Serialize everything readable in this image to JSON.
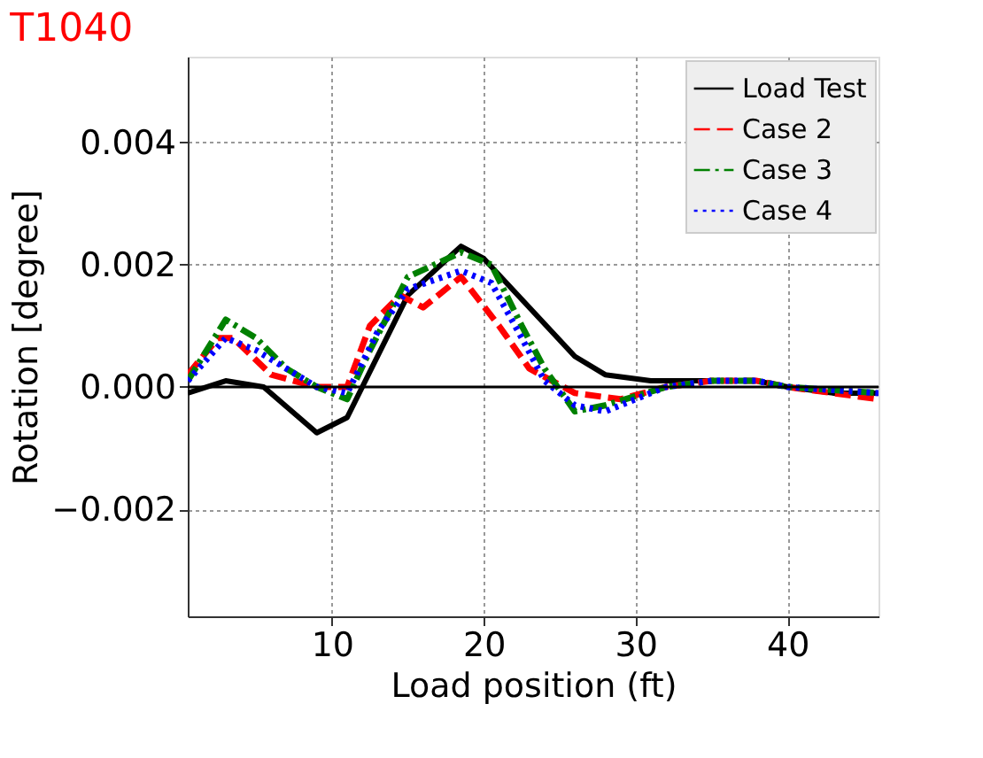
{
  "chart_data": {
    "type": "line",
    "title": "T1040",
    "xlabel": "Load position (ft)",
    "ylabel": "Rotation [degree]",
    "xlim": [
      0.5,
      46
    ],
    "xticks": [
      10,
      20,
      30,
      40
    ],
    "ylim": [
      -0.00375,
      0.0054
    ],
    "yticks": [
      {
        "value": -0.002,
        "label": "−0.002"
      },
      {
        "value": 0,
        "label": "0.000"
      },
      {
        "value": 0.002,
        "label": "0.002"
      },
      {
        "value": 0.004,
        "label": "0.004"
      }
    ],
    "grid": true,
    "legend": "top right",
    "marker": "none",
    "ref_lines": [
      {
        "axis": "y",
        "value": 0,
        "label": null,
        "color": "#000000",
        "line_style": "solid"
      }
    ],
    "series": [
      {
        "name": "Load Test",
        "color": "#000000",
        "line_style": "solid",
        "x": [
          0.5,
          3,
          5.5,
          9,
          11,
          13,
          15,
          18.5,
          20,
          23,
          26,
          28,
          31,
          35,
          38,
          40,
          43,
          46
        ],
        "values": [
          -0.0001,
          0.0001,
          0,
          -0.00075,
          -0.0005,
          0.0005,
          0.0015,
          0.0023,
          0.0021,
          0.0013,
          0.0005,
          0.0002,
          0.0001,
          0.0001,
          0.0001,
          0,
          -0.0001,
          -0.0001
        ]
      },
      {
        "name": "Case 2",
        "color": "#ff0000",
        "line_style": "dashed",
        "x": [
          0.5,
          2.5,
          3.5,
          6,
          9,
          11,
          12.5,
          14.5,
          16,
          18.5,
          21,
          23,
          26,
          29,
          32,
          35,
          38,
          40,
          46
        ],
        "values": [
          0.0002,
          0.0008,
          0.0008,
          0.0002,
          0,
          0,
          0.001,
          0.0015,
          0.0013,
          0.0018,
          0.001,
          0.0003,
          -0.0001,
          -0.0002,
          0,
          0.0001,
          0.0001,
          0,
          -0.0002
        ]
      },
      {
        "name": "Case 3",
        "color": "#008000",
        "line_style": "dashdot",
        "x": [
          0.5,
          3,
          5,
          7,
          9,
          11,
          12.5,
          15,
          18.5,
          20.5,
          22.5,
          24,
          26,
          28,
          32,
          35,
          38,
          40,
          46
        ],
        "values": [
          0.0001,
          0.0011,
          0.0008,
          0.0003,
          0,
          -0.0002,
          0.0006,
          0.0018,
          0.0022,
          0.002,
          0.001,
          0.0003,
          -0.0004,
          -0.0003,
          0,
          0.0001,
          0.0001,
          0,
          -0.0001
        ]
      },
      {
        "name": "Case 4",
        "color": "#0000ff",
        "line_style": "dotted",
        "x": [
          0.5,
          3,
          5,
          7,
          9,
          11,
          13,
          15,
          18.5,
          20.5,
          22.5,
          24,
          26,
          28,
          32,
          35,
          38,
          40,
          46
        ],
        "values": [
          0.0001,
          0.0008,
          0.0006,
          0.0003,
          0,
          -0.0001,
          0.0009,
          0.0016,
          0.0019,
          0.0017,
          0.0008,
          0.0001,
          -0.0003,
          -0.0004,
          0,
          0.0001,
          0.0001,
          0,
          -0.0001
        ]
      }
    ]
  }
}
